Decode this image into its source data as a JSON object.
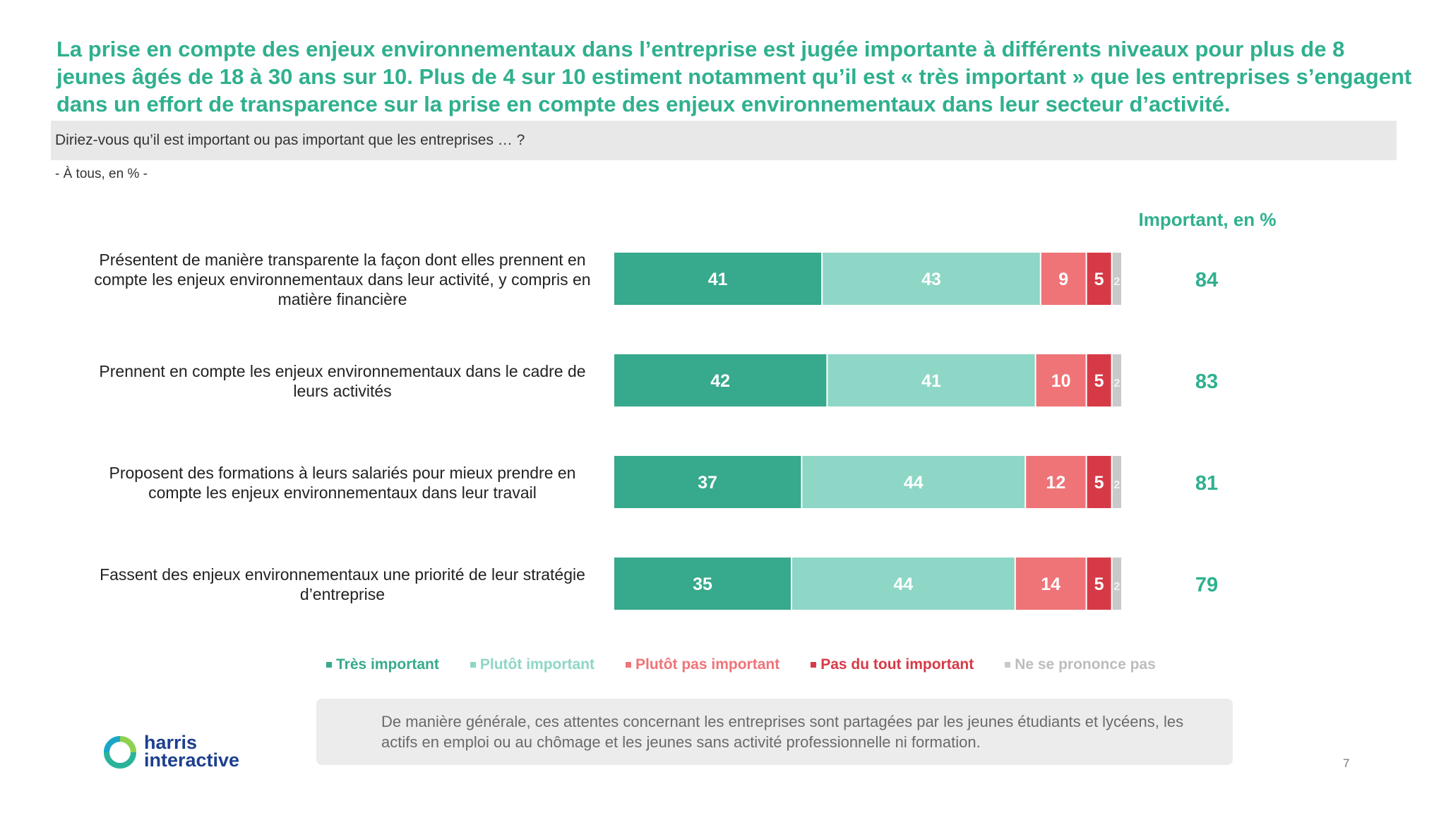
{
  "headline": "La prise en compte des enjeux environnementaux dans l’entreprise est jugée importante à différents niveaux pour plus de 8 jeunes âgés de 18 à 30 ans sur 10. Plus de 4 sur 10 estiment notamment qu’il est « très important » que les entreprises s’engagent dans un effort de transparence sur la prise en compte des enjeux environnementaux dans leur secteur d’activité.",
  "question": "Diriez-vous qu’il est important ou pas important que les entreprises … ?",
  "base_note": "- À tous, en % -",
  "important_header": "Important, en %",
  "callout": "De manière générale, ces attentes concernant les entreprises sont partagées par les jeunes étudiants et lycéens, les actifs en emploi ou au chômage et les jeunes sans activité professionnelle ni formation.",
  "logo": {
    "line1": "harris",
    "line2": "interactive"
  },
  "page_number": "7",
  "colors": {
    "tres_important": "#37a98c",
    "plutot_important": "#8ed6c5",
    "plutot_pas_important": "#ef7478",
    "pas_du_tout_important": "#d63a47",
    "ne_se_prononce_pas": "#c9c9c9",
    "accent": "#2fb08f",
    "logo_blue": "#1d3f8f"
  },
  "chart_data": {
    "type": "bar",
    "orientation": "horizontal",
    "stacked": true,
    "unit": "%",
    "categories": [
      "Présentent de manière transparente la façon dont elles prennent en compte les enjeux environnementaux dans leur activité, y compris en matière financière",
      "Prennent en compte les enjeux environnementaux dans le cadre de leurs activités",
      "Proposent des formations à leurs salariés pour mieux prendre en compte les enjeux environnementaux dans leur travail",
      "Fassent des enjeux environnementaux une priorité de leur stratégie d’entreprise"
    ],
    "series": [
      {
        "name": "Très important",
        "values": [
          41,
          42,
          37,
          35
        ]
      },
      {
        "name": "Plutôt important",
        "values": [
          43,
          41,
          44,
          44
        ]
      },
      {
        "name": "Plutôt pas important",
        "values": [
          9,
          10,
          12,
          14
        ]
      },
      {
        "name": "Pas du tout important",
        "values": [
          5,
          5,
          5,
          5
        ]
      },
      {
        "name": "Ne se prononce pas",
        "values": [
          2,
          2,
          2,
          2
        ]
      }
    ],
    "important_total": [
      84,
      83,
      81,
      79
    ],
    "legend_position": "bottom"
  }
}
